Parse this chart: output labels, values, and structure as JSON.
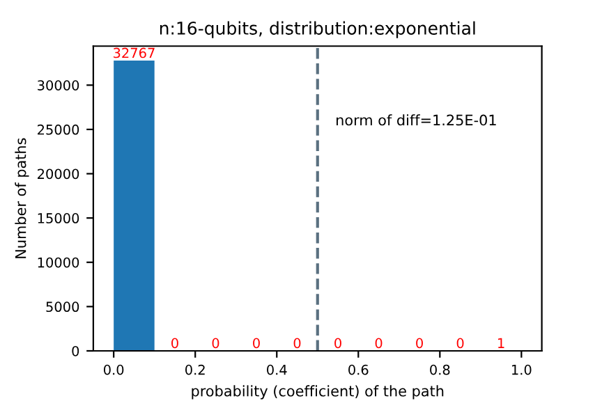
{
  "chart_data": {
    "type": "histogram",
    "title": "n:16-qubits, distribution:exponential",
    "xlabel": "probability (coefficient) of the path",
    "ylabel": "Number of paths",
    "bins": [
      0.0,
      0.1,
      0.2,
      0.3,
      0.4,
      0.5,
      0.6,
      0.7,
      0.8,
      0.9,
      1.0
    ],
    "values": [
      32767,
      0,
      0,
      0,
      0,
      0,
      0,
      0,
      0,
      1
    ],
    "color": "#1f77b4",
    "data_labels": true,
    "xlim": [
      -0.05,
      1.05
    ],
    "ylim": [
      0,
      34405
    ],
    "xticks": [
      {
        "value": 0,
        "label": "0.0"
      },
      0.2,
      0.4,
      0.6,
      0.8,
      {
        "value": 1,
        "label": "1.0"
      }
    ],
    "yticks": [
      0,
      5000,
      10000,
      15000,
      20000,
      25000,
      30000
    ],
    "ref_lines": [
      {
        "axis": "x",
        "value": 0.5,
        "color": "#5a7080",
        "line_style": "dashed"
      }
    ],
    "annotations": [
      "norm of diff=1.25E-01"
    ],
    "grid": false
  }
}
